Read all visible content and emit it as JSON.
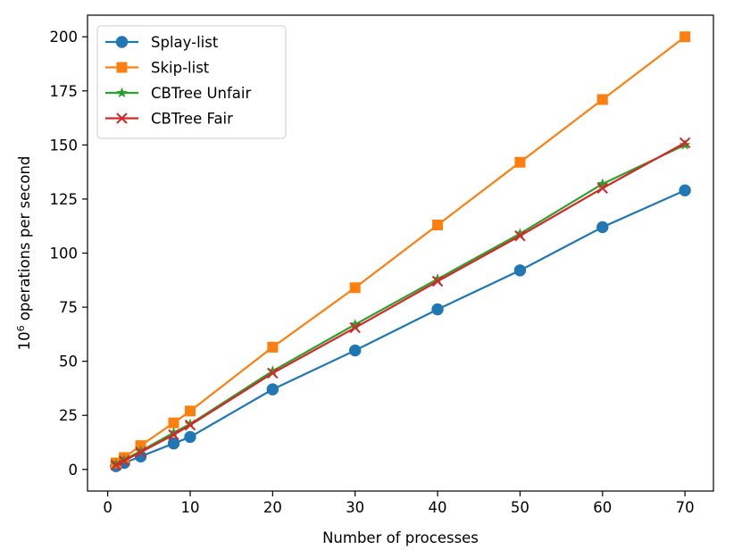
{
  "chart_data": {
    "type": "line",
    "title": "",
    "xlabel": "Number of processes",
    "ylabel_base": "10",
    "ylabel_exp": "6",
    "ylabel_rest": " operations per second",
    "xlim": [
      -2.45,
      73.45
    ],
    "ylim": [
      -10,
      210
    ],
    "xticks": [
      0,
      10,
      20,
      30,
      40,
      50,
      60,
      70
    ],
    "yticks": [
      0,
      25,
      50,
      75,
      100,
      125,
      150,
      175,
      200
    ],
    "x": [
      1,
      2,
      4,
      8,
      10,
      20,
      30,
      40,
      50,
      60,
      70
    ],
    "series": [
      {
        "name": "Splay-list",
        "color": "#1f77b4",
        "marker": "circle",
        "values": [
          1.5,
          3,
          6,
          12,
          15,
          37,
          55,
          74,
          92,
          112,
          129
        ]
      },
      {
        "name": "Skip-list",
        "color": "#ff7f0e",
        "marker": "square",
        "values": [
          3,
          5.5,
          11,
          21.5,
          27,
          56.5,
          84,
          113,
          142,
          171,
          200
        ]
      },
      {
        "name": "CBTree Unfair",
        "color": "#2ca02c",
        "marker": "star",
        "values": [
          2.5,
          4.5,
          8.5,
          17,
          21,
          45.5,
          67,
          88,
          109,
          132,
          150
        ]
      },
      {
        "name": "CBTree Fair",
        "color": "#d62728",
        "marker": "x",
        "values": [
          2,
          4,
          8,
          16,
          20.5,
          44.5,
          65.5,
          87,
          108,
          130,
          151
        ]
      }
    ],
    "legend": "top-left",
    "grid": false
  }
}
